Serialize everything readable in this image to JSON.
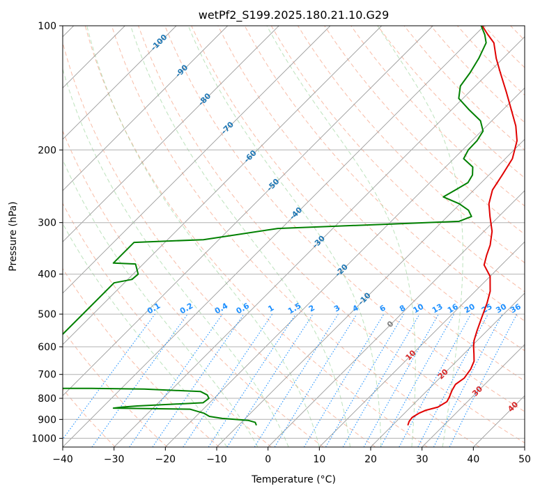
{
  "chart_data": {
    "type": "line",
    "subtype": "skew-t log-p diagram",
    "title": "wetPf2_S199.2025.180.21.10.G29",
    "xlabel": "Temperature (°C)",
    "ylabel": "Pressure (hPa)",
    "xlim": [
      -40,
      50
    ],
    "ylim": [
      1050,
      100
    ],
    "y_scale": "log",
    "x_ticks": [
      -40,
      -30,
      -20,
      -10,
      0,
      10,
      20,
      30,
      40,
      50
    ],
    "y_ticks": [
      100,
      200,
      300,
      400,
      500,
      600,
      700,
      800,
      900,
      1000
    ],
    "grid": true,
    "colors": {
      "temperature": "#e00000",
      "dewpoint": "#008000",
      "isotherm_labels": "#1f77b4",
      "isotherm_labels_warm": "#d62728",
      "mixing_ratio_labels": "#1e90ff",
      "zero_isotherm": "#808080"
    },
    "isotherm_labels": [
      {
        "text": "-100",
        "value": -100
      },
      {
        "text": "-90",
        "value": -90
      },
      {
        "text": "-80",
        "value": -80
      },
      {
        "text": "-70",
        "value": -70
      },
      {
        "text": "-60",
        "value": -60
      },
      {
        "text": "-50",
        "value": -50
      },
      {
        "text": "-40",
        "value": -40
      },
      {
        "text": "-30",
        "value": -30
      },
      {
        "text": "-20",
        "value": -20
      },
      {
        "text": "-10",
        "value": -10
      },
      {
        "text": "0",
        "value": 0
      },
      {
        "text": "10",
        "value": 10
      },
      {
        "text": "20",
        "value": 20
      },
      {
        "text": "30",
        "value": 30
      },
      {
        "text": "40",
        "value": 40
      }
    ],
    "mixing_ratio_labels": [
      "0.1",
      "0.2",
      "0.4",
      "0.6",
      "1",
      "1.5",
      "2",
      "3",
      "4",
      "6",
      "8",
      "10",
      "13",
      "16",
      "20",
      "25",
      "30",
      "36"
    ],
    "series": [
      {
        "name": "temperature",
        "points": [
          [
            23,
            930
          ],
          [
            22.5,
            910
          ],
          [
            22.3,
            890
          ],
          [
            22.8,
            870
          ],
          [
            23.6,
            855
          ],
          [
            25.3,
            840
          ],
          [
            26.0,
            815
          ],
          [
            25.6,
            795
          ],
          [
            24.8,
            765
          ],
          [
            24.3,
            740
          ],
          [
            24.8,
            715
          ],
          [
            24.3,
            680
          ],
          [
            23.4,
            650
          ],
          [
            22.0,
            625
          ],
          [
            20.5,
            600
          ],
          [
            19.4,
            580
          ],
          [
            18.1,
            550
          ],
          [
            16.4,
            510
          ],
          [
            14.6,
            470
          ],
          [
            12.9,
            440
          ],
          [
            10.0,
            405
          ],
          [
            6.6,
            380
          ],
          [
            5.2,
            360
          ],
          [
            3.9,
            340
          ],
          [
            1.6,
            315
          ],
          [
            -1.7,
            290
          ],
          [
            -4.4,
            270
          ],
          [
            -6.4,
            250
          ],
          [
            -7.4,
            230
          ],
          [
            -8.6,
            210
          ],
          [
            -11.2,
            190
          ],
          [
            -14.3,
            175
          ],
          [
            -18.3,
            160
          ],
          [
            -22.7,
            145
          ],
          [
            -27.7,
            130
          ],
          [
            -31.3,
            120
          ],
          [
            -34.8,
            110
          ],
          [
            -37.6,
            105
          ],
          [
            -40.4,
            100
          ]
        ]
      },
      {
        "name": "dewpoint",
        "points": [
          [
            -6.5,
            930
          ],
          [
            -7.3,
            915
          ],
          [
            -9.0,
            905
          ],
          [
            -14.5,
            895
          ],
          [
            -17.4,
            885
          ],
          [
            -19.0,
            870
          ],
          [
            -22.6,
            850
          ],
          [
            -37.7,
            845
          ],
          [
            -36.2,
            840
          ],
          [
            -33.5,
            835
          ],
          [
            -21.3,
            820
          ],
          [
            -21.0,
            800
          ],
          [
            -22.0,
            785
          ],
          [
            -24.0,
            770
          ],
          [
            -35.4,
            760
          ],
          [
            -45.8,
            757
          ],
          [
            -62,
            757
          ],
          [
            -62,
            420
          ],
          [
            -59.2,
            412
          ],
          [
            -59.0,
            400
          ],
          [
            -61.5,
            378
          ],
          [
            -66,
            376
          ],
          [
            -66,
            335
          ],
          [
            -53.0,
            330
          ],
          [
            -40.7,
            310
          ],
          [
            -21.0,
            303
          ],
          [
            -6.8,
            298
          ],
          [
            -5.3,
            290
          ],
          [
            -7.1,
            280
          ],
          [
            -10.2,
            270
          ],
          [
            -14.6,
            260
          ],
          [
            -13.6,
            250
          ],
          [
            -12.6,
            240
          ],
          [
            -13.2,
            230
          ],
          [
            -14.7,
            220
          ],
          [
            -18.1,
            210
          ],
          [
            -18.9,
            200
          ],
          [
            -19.0,
            190
          ],
          [
            -19.7,
            180
          ],
          [
            -22.2,
            170
          ],
          [
            -26.5,
            160
          ],
          [
            -30.8,
            150
          ],
          [
            -32.9,
            140
          ],
          [
            -33.6,
            130
          ],
          [
            -34.7,
            120
          ],
          [
            -36.3,
            110
          ],
          [
            -38.2,
            105
          ],
          [
            -40.6,
            100
          ]
        ]
      }
    ]
  }
}
